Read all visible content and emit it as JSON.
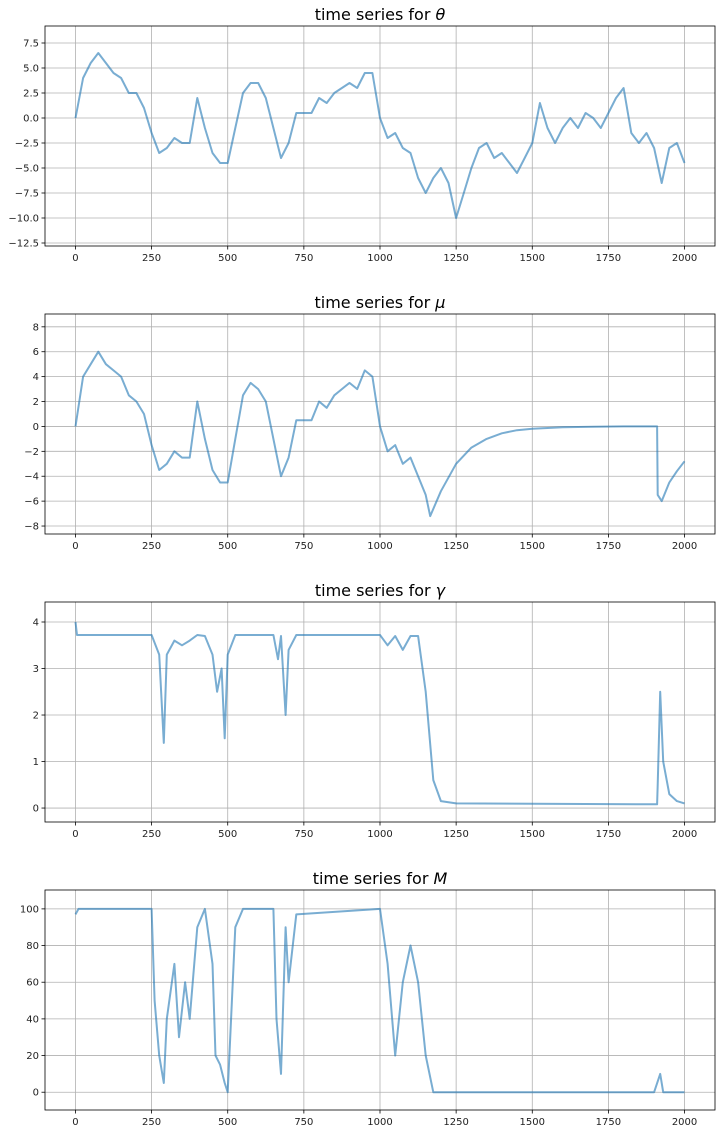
{
  "chart_data": [
    {
      "type": "line",
      "title": "time series for θ",
      "xlim": [
        -100,
        2100
      ],
      "ylim": [
        -12.8,
        9.2
      ],
      "xticks": [
        0,
        250,
        500,
        750,
        1000,
        1250,
        1500,
        1750,
        2000
      ],
      "yticks": [
        -12.5,
        -10.0,
        -7.5,
        -5.0,
        -2.5,
        0.0,
        2.5,
        5.0,
        7.5
      ],
      "ytick_decimals": 1,
      "grid": true,
      "color": "#1f77b4",
      "x": [
        0,
        25,
        50,
        75,
        100,
        125,
        150,
        175,
        200,
        225,
        250,
        275,
        300,
        325,
        350,
        375,
        400,
        425,
        450,
        475,
        500,
        525,
        550,
        575,
        600,
        625,
        650,
        675,
        700,
        725,
        750,
        775,
        800,
        825,
        850,
        875,
        900,
        925,
        950,
        975,
        1000,
        1025,
        1050,
        1075,
        1100,
        1125,
        1150,
        1175,
        1200,
        1225,
        1250,
        1275,
        1300,
        1325,
        1350,
        1375,
        1400,
        1425,
        1450,
        1475,
        1500,
        1525,
        1550,
        1575,
        1600,
        1625,
        1650,
        1675,
        1700,
        1725,
        1750,
        1775,
        1800,
        1825,
        1850,
        1875,
        1900,
        1925,
        1950,
        1975,
        2000
      ],
      "y": [
        0,
        4,
        5.5,
        6.5,
        5.5,
        4.5,
        4,
        2.5,
        2.5,
        1,
        -1.5,
        -3.5,
        -3,
        -2,
        -2.5,
        -2.5,
        2,
        -1,
        -3.5,
        -4.5,
        -4.5,
        -1,
        2.5,
        3.5,
        3.5,
        2,
        -1,
        -4,
        -2.5,
        0.5,
        0.5,
        0.5,
        2,
        1.5,
        2.5,
        3,
        3.5,
        3,
        4.5,
        4.5,
        0,
        -2,
        -1.5,
        -3,
        -3.5,
        -6,
        -7.5,
        -6,
        -5,
        -6.5,
        -10,
        -7.5,
        -5,
        -3,
        -2.5,
        -4,
        -3.5,
        -4.5,
        -5.5,
        -4,
        -2.5,
        1.5,
        -1,
        -2.5,
        -1,
        0,
        -1,
        0.5,
        0,
        -1,
        0.5,
        2,
        3,
        -1.5,
        -2.5,
        -1.5,
        -3,
        -6.5,
        -3,
        -2.5,
        -4.5
      ]
    },
    {
      "type": "line",
      "title": "time series for μ",
      "xlim": [
        -100,
        2100
      ],
      "ylim": [
        -8.64,
        9.03
      ],
      "xticks": [
        0,
        250,
        500,
        750,
        1000,
        1250,
        1500,
        1750,
        2000
      ],
      "yticks": [
        -8,
        -6,
        -4,
        -2,
        0,
        2,
        4,
        6,
        8
      ],
      "ytick_decimals": 0,
      "grid": true,
      "color": "#1f77b4",
      "x": [
        0,
        25,
        50,
        75,
        100,
        125,
        150,
        175,
        200,
        225,
        250,
        275,
        300,
        325,
        350,
        375,
        400,
        425,
        450,
        475,
        500,
        525,
        550,
        575,
        600,
        625,
        650,
        675,
        700,
        725,
        750,
        775,
        800,
        825,
        850,
        875,
        900,
        925,
        950,
        975,
        1000,
        1025,
        1050,
        1075,
        1100,
        1125,
        1150,
        1165,
        1200,
        1250,
        1300,
        1350,
        1400,
        1450,
        1500,
        1600,
        1700,
        1800,
        1910,
        1912,
        1925,
        1950,
        1975,
        2000
      ],
      "y": [
        0,
        4,
        5,
        6,
        5,
        4.5,
        4,
        2.5,
        2,
        1,
        -1.5,
        -3.5,
        -3,
        -2,
        -2.5,
        -2.5,
        2,
        -1,
        -3.5,
        -4.5,
        -4.5,
        -1,
        2.5,
        3.5,
        3,
        2,
        -1,
        -4,
        -2.5,
        0.5,
        0.5,
        0.5,
        2,
        1.5,
        2.5,
        3,
        3.5,
        3,
        4.5,
        4,
        0,
        -2,
        -1.5,
        -3,
        -2.5,
        -4,
        -5.5,
        -7.2,
        -5.2,
        -3,
        -1.7,
        -1,
        -0.55,
        -0.3,
        -0.18,
        -0.06,
        -0.02,
        0,
        0,
        -5.5,
        -6,
        -4.5,
        -3.6,
        -2.8
      ]
    },
    {
      "type": "line",
      "title": "time series for γ",
      "xlim": [
        -100,
        2100
      ],
      "ylim": [
        -0.3,
        4.43
      ],
      "xticks": [
        0,
        250,
        500,
        750,
        1000,
        1250,
        1500,
        1750,
        2000
      ],
      "yticks": [
        0,
        1,
        2,
        3,
        4
      ],
      "ytick_decimals": 0,
      "grid": true,
      "color": "#1f77b4",
      "x": [
        0,
        5,
        250,
        275,
        290,
        300,
        325,
        350,
        375,
        400,
        425,
        450,
        465,
        480,
        490,
        500,
        525,
        650,
        665,
        675,
        690,
        700,
        725,
        1000,
        1025,
        1050,
        1075,
        1100,
        1125,
        1150,
        1175,
        1200,
        1250,
        1910,
        1912,
        1920,
        1930,
        1950,
        1975,
        2000
      ],
      "y": [
        4,
        3.72,
        3.72,
        3.3,
        1.4,
        3.3,
        3.6,
        3.5,
        3.6,
        3.72,
        3.7,
        3.3,
        2.5,
        3.0,
        1.5,
        3.3,
        3.72,
        3.72,
        3.2,
        3.7,
        2.0,
        3.4,
        3.72,
        3.72,
        3.5,
        3.7,
        3.4,
        3.7,
        3.7,
        2.5,
        0.6,
        0.15,
        0.1,
        0.08,
        0.5,
        2.5,
        1.0,
        0.3,
        0.15,
        0.1
      ]
    },
    {
      "type": "line",
      "title": "time series for M",
      "xlim": [
        -100,
        2100
      ],
      "ylim": [
        -9.7,
        110.3
      ],
      "xticks": [
        0,
        250,
        500,
        750,
        1000,
        1250,
        1500,
        1750,
        2000
      ],
      "yticks": [
        0,
        20,
        40,
        60,
        80,
        100
      ],
      "ytick_decimals": 0,
      "grid": true,
      "color": "#1f77b4",
      "x": [
        0,
        10,
        250,
        260,
        275,
        290,
        300,
        325,
        340,
        360,
        375,
        400,
        425,
        450,
        460,
        475,
        490,
        500,
        525,
        550,
        650,
        660,
        675,
        690,
        700,
        725,
        1000,
        1025,
        1050,
        1075,
        1100,
        1125,
        1150,
        1175,
        1900,
        1920,
        1930,
        2000
      ],
      "y": [
        97,
        100,
        100,
        50,
        20,
        5,
        40,
        70,
        30,
        60,
        40,
        90,
        100,
        70,
        20,
        15,
        5,
        0,
        90,
        100,
        100,
        40,
        10,
        90,
        60,
        97,
        100,
        70,
        20,
        60,
        80,
        60,
        20,
        0,
        0,
        10,
        0,
        0
      ]
    }
  ]
}
